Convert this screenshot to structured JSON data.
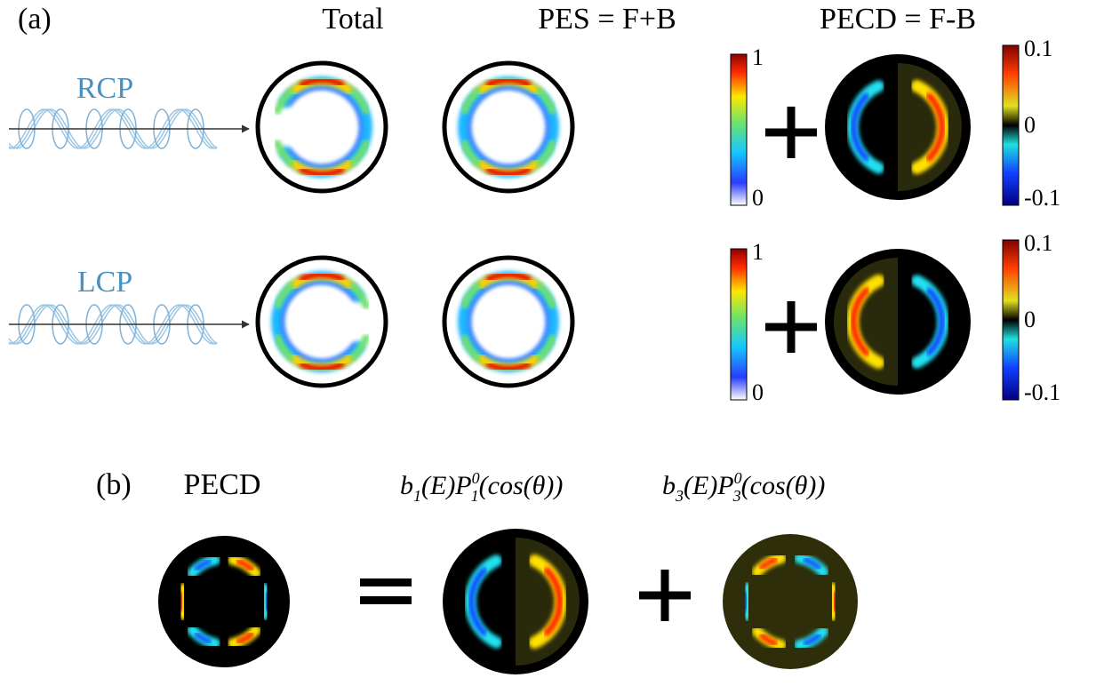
{
  "panel_a": {
    "label": "(a)",
    "headers": {
      "total": "Total",
      "pes": "PES = F+B",
      "pecd": "PECD = F-B"
    },
    "rows": [
      {
        "light": "RCP",
        "pes_colorbar": [
          "1",
          "0"
        ],
        "pecd_colorbar": [
          "0.1",
          "0",
          "-0.1"
        ]
      },
      {
        "light": "LCP",
        "pes_colorbar": [
          "1",
          "0"
        ],
        "pecd_colorbar": [
          "0.1",
          "0",
          "-0.1"
        ]
      }
    ]
  },
  "panel_b": {
    "label": "(b)",
    "pecd": "PECD",
    "term1": [
      "b",
      "1",
      "(E)P",
      "0",
      "1",
      "(cos(θ))"
    ],
    "term3": [
      "b",
      "3",
      "(E)P",
      "0",
      "3",
      "(cos(θ))"
    ]
  }
}
